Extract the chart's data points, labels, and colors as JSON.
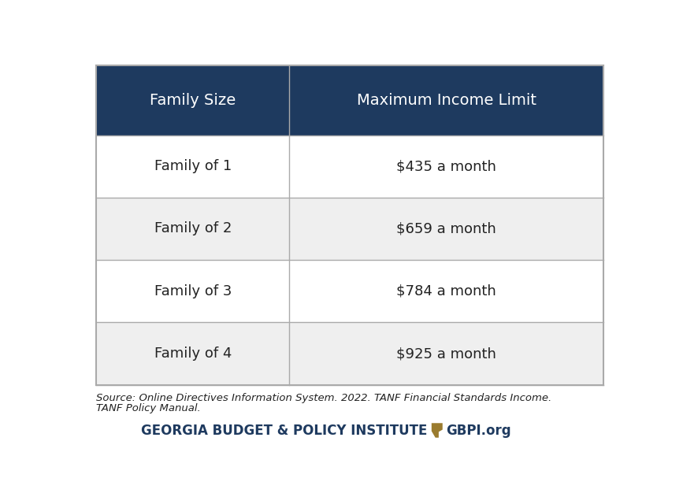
{
  "header": [
    "Family Size",
    "Maximum Income Limit"
  ],
  "rows": [
    [
      "Family of 1",
      "$435 a month"
    ],
    [
      "Family of 2",
      "$659 a month"
    ],
    [
      "Family of 3",
      "$784 a month"
    ],
    [
      "Family of 4",
      "$925 a month"
    ]
  ],
  "header_bg_color": "#1e3a5f",
  "header_text_color": "#ffffff",
  "row_colors": [
    "#ffffff",
    "#efefef",
    "#ffffff",
    "#efefef"
  ],
  "cell_text_color": "#222222",
  "border_color": "#aaaaaa",
  "source_text_line1": "Source: Online Directives Information System. 2022. TANF Financial Standards Income.",
  "source_text_line2": "TANF Policy Manual.",
  "footer_text": "GEORGIA BUDGET & POLICY INSTITUTE",
  "footer_url": "GBPI.org",
  "footer_color": "#1e3a5f",
  "footer_gold_color": "#9a7b2e",
  "col_split": 0.38,
  "header_fontsize": 14,
  "cell_fontsize": 13,
  "source_fontsize": 9.5,
  "footer_fontsize": 12
}
